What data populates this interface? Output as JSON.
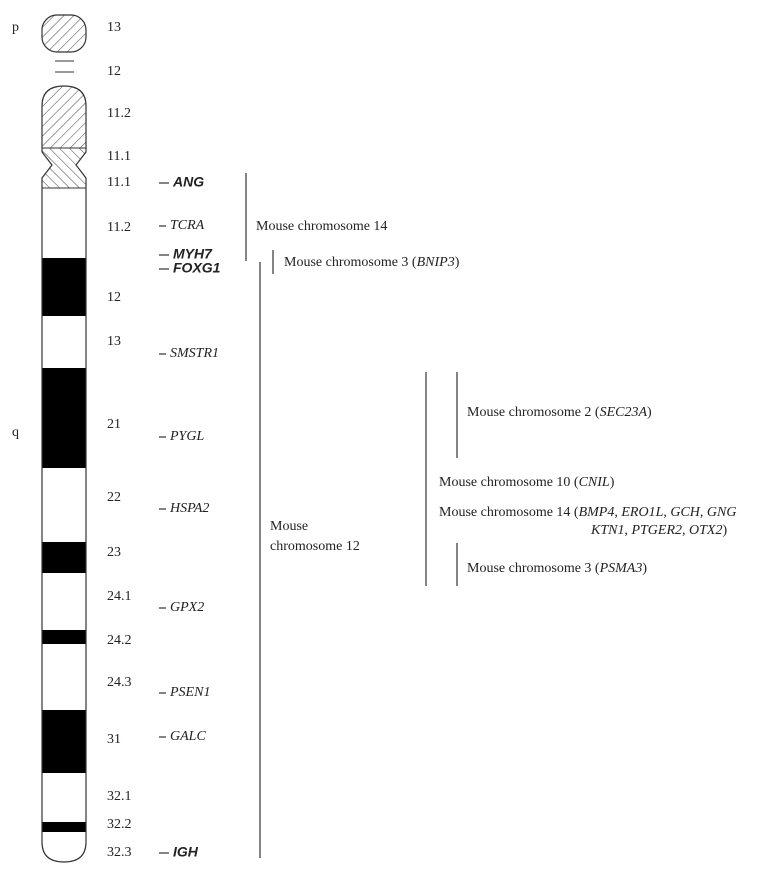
{
  "arms": [
    {
      "label": "p"
    },
    {
      "label": "q"
    }
  ],
  "bands": [
    {
      "label": "13"
    },
    {
      "label": "12"
    },
    {
      "label": "11.2"
    },
    {
      "label": "11.1"
    },
    {
      "label": "11.1"
    },
    {
      "label": "11.2"
    },
    {
      "label": "12"
    },
    {
      "label": "13"
    },
    {
      "label": "21"
    },
    {
      "label": "22"
    },
    {
      "label": "23"
    },
    {
      "label": "24.1"
    },
    {
      "label": "24.2"
    },
    {
      "label": "24.3"
    },
    {
      "label": "31"
    },
    {
      "label": "32.1"
    },
    {
      "label": "32.2"
    },
    {
      "label": "32.3"
    }
  ],
  "genes": [
    {
      "name": "ANG",
      "bold": true
    },
    {
      "name": "TCRA",
      "bold": false
    },
    {
      "name": "MYH7",
      "bold": true
    },
    {
      "name": "FOXG1",
      "bold": true
    },
    {
      "name": "SMSTR1",
      "bold": false
    },
    {
      "name": "PYGL",
      "bold": false
    },
    {
      "name": "HSPA2",
      "bold": false
    },
    {
      "name": "GPX2",
      "bold": false
    },
    {
      "name": "PSEN1",
      "bold": false
    },
    {
      "name": "GALC",
      "bold": false
    },
    {
      "name": "IGH",
      "bold": true
    }
  ],
  "mouse_regions": [
    {
      "lines": [
        [
          {
            "text": "Mouse chromosome 14"
          }
        ]
      ]
    },
    {
      "lines": [
        [
          {
            "text": "Mouse chromosome 3 ("
          },
          {
            "text": "BNIP3",
            "italic": true
          },
          {
            "text": ")"
          }
        ]
      ]
    },
    {
      "lines": [
        [
          {
            "text": "Mouse"
          }
        ],
        [
          {
            "text": "chromosome 12"
          }
        ]
      ]
    },
    {
      "lines": [
        [
          {
            "text": "Mouse chromosome 2 ("
          },
          {
            "text": "SEC23A",
            "italic": true
          },
          {
            "text": ")"
          }
        ]
      ]
    },
    {
      "lines": [
        [
          {
            "text": "Mouse chromosome 10 ("
          },
          {
            "text": "CNIL",
            "italic": true
          },
          {
            "text": ")"
          }
        ]
      ]
    },
    {
      "lines": [
        [
          {
            "text": "Mouse chromosome 14 ("
          },
          {
            "text": "BMP4",
            "italic": true
          },
          {
            "text": ", "
          },
          {
            "text": "ERO1L",
            "italic": true
          },
          {
            "text": ", "
          },
          {
            "text": "GCH",
            "italic": true
          },
          {
            "text": ", "
          },
          {
            "text": "GNG",
            "italic": true
          }
        ],
        [
          {
            "text": "KTN1",
            "italic": true
          },
          {
            "text": ", "
          },
          {
            "text": "PTGER2",
            "italic": true
          },
          {
            "text": ", "
          },
          {
            "text": "OTX2",
            "italic": true
          },
          {
            "text": ")"
          }
        ]
      ]
    },
    {
      "lines": [
        [
          {
            "text": "Mouse chromosome 3 ("
          },
          {
            "text": "PSMA3",
            "italic": true
          },
          {
            "text": ")"
          }
        ]
      ]
    }
  ]
}
